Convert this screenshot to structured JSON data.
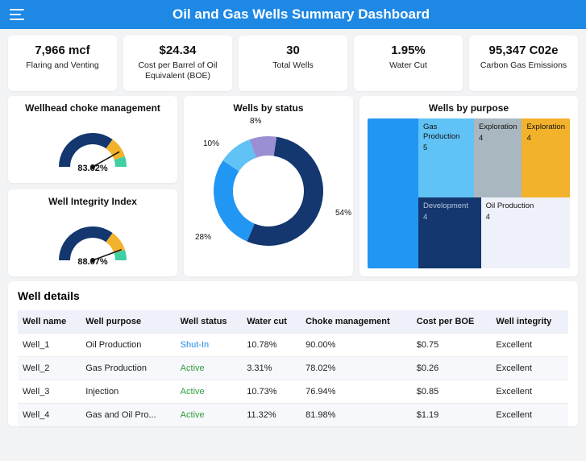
{
  "header": {
    "title": "Oil and Gas Wells Summary Dashboard"
  },
  "accent": "#1e88e5",
  "kpis": [
    {
      "value": "7,966 mcf",
      "label": "Flaring and Venting"
    },
    {
      "value": "$24.34",
      "label": "Cost per Barrel of Oil Equivalent (BOE)"
    },
    {
      "value": "30",
      "label": "Total Wells"
    },
    {
      "value": "1.95%",
      "label": "Water Cut"
    },
    {
      "value": "95,347 C02e",
      "label": "Carbon Gas Emissions"
    }
  ],
  "gauges": {
    "choke": {
      "title": "Wellhead choke management",
      "value": 0.8362,
      "value_label": "83.62%",
      "value_top": 84,
      "colors": [
        "#13376e",
        "#f3b22b",
        "#3fcfa4"
      ]
    },
    "integrity": {
      "title": "Well Integrity Index",
      "value": 0.8867,
      "value_label": "88.67%",
      "value_top": 84,
      "colors": [
        "#13376e",
        "#f3b22b",
        "#3fcfa4"
      ]
    }
  },
  "status_chart": {
    "title": "Wells by status",
    "slices": [
      {
        "pct": 54,
        "color": "#13376e"
      },
      {
        "pct": 28,
        "color": "#2196f3"
      },
      {
        "pct": 10,
        "color": "#60c2f5"
      },
      {
        "pct": 8,
        "color": "#9a8fd3"
      }
    ],
    "labels": {
      "l54": "54%",
      "l28": "28%",
      "l10": "10%",
      "l8": "8%"
    }
  },
  "purpose_chart": {
    "title": "Wells by purpose",
    "all_color": "#2196f3",
    "cells": {
      "gasprod": {
        "label": "Gas Production",
        "count": "5",
        "color": "#60c2f5"
      },
      "expl1": {
        "label": "Exploration",
        "count": "4",
        "color": "#a9b8c0"
      },
      "expl2": {
        "label": "Exploration",
        "count": "4",
        "color": "#f3b22b"
      },
      "dev": {
        "label": "Development",
        "count": "4",
        "color": "#13376e",
        "text_color": "#b9c6db"
      },
      "oilprod": {
        "label": "Oil Production",
        "count": "4",
        "color": "#eef1f9"
      }
    }
  },
  "details": {
    "title": "Well details",
    "columns": [
      "Well name",
      "Well purpose",
      "Well status",
      "Water cut",
      "Choke management",
      "Cost per BOE",
      "Well integrity"
    ],
    "rows": [
      {
        "name": "Well_1",
        "purpose": "Oil Production",
        "status": "Shut-In",
        "status_class": "status-shutin",
        "water": "10.78%",
        "choke": "90.00%",
        "cost": "$0.75",
        "integrity": "Excellent"
      },
      {
        "name": "Well_2",
        "purpose": "Gas Production",
        "status": "Active",
        "status_class": "status-active",
        "water": "3.31%",
        "choke": "78.02%",
        "cost": "$0.26",
        "integrity": "Excellent"
      },
      {
        "name": "Well_3",
        "purpose": "Injection",
        "status": "Active",
        "status_class": "status-active",
        "water": "10.73%",
        "choke": "76.94%",
        "cost": "$0.85",
        "integrity": "Excellent"
      },
      {
        "name": "Well_4",
        "purpose": "Gas and Oil Pro...",
        "status": "Active",
        "status_class": "status-active",
        "water": "11.32%",
        "choke": "81.98%",
        "cost": "$1.19",
        "integrity": "Excellent"
      }
    ]
  }
}
